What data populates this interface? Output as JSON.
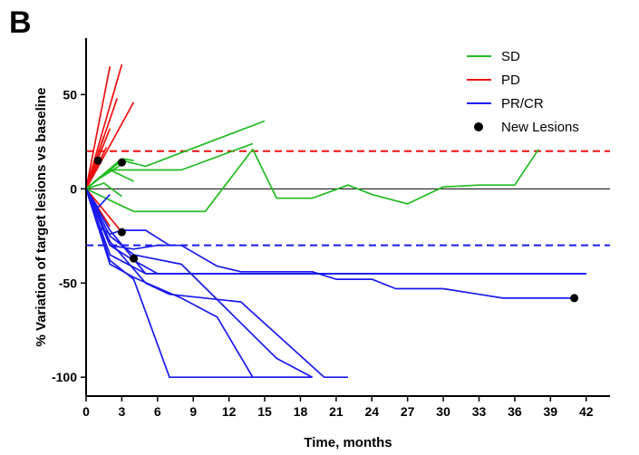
{
  "panel_label": "B",
  "chart_data": {
    "type": "line",
    "title": "",
    "xlabel": "Time, months",
    "ylabel": "% Variation of target lesions vs baseline",
    "xlim": [
      0,
      44
    ],
    "ylim": [
      -110,
      80
    ],
    "x_ticks": [
      0,
      3,
      6,
      9,
      12,
      15,
      18,
      21,
      24,
      27,
      30,
      33,
      36,
      39,
      42
    ],
    "y_ticks": [
      -100,
      -50,
      0,
      50
    ],
    "grid": false,
    "legend_position": "top-right",
    "colors": {
      "SD": "#22bb22",
      "PD": "#ee1111",
      "PR/CR": "#1a1aee",
      "New Lesions": "#000000",
      "zero_line": "#000000"
    },
    "legend": [
      {
        "label": "SD",
        "marker": "line",
        "color": "#22bb22"
      },
      {
        "label": "PD",
        "marker": "line",
        "color": "#ee1111"
      },
      {
        "label": "PR/CR",
        "marker": "line",
        "color": "#1a1aee"
      },
      {
        "label": "New Lesions",
        "marker": "dot",
        "color": "#000000"
      }
    ],
    "reference_lines": [
      {
        "y": 0,
        "color": "#000000",
        "style": "solid"
      },
      {
        "y": 20,
        "color": "#ee1111",
        "style": "dashed"
      },
      {
        "y": -30,
        "color": "#1a1aee",
        "style": "dashed"
      }
    ],
    "series": [
      {
        "group": "PD",
        "x": [
          0,
          2
        ],
        "y": [
          0,
          65
        ]
      },
      {
        "group": "PD",
        "x": [
          0,
          3
        ],
        "y": [
          0,
          66
        ]
      },
      {
        "group": "PD",
        "x": [
          0,
          2.6
        ],
        "y": [
          0,
          48
        ]
      },
      {
        "group": "PD",
        "x": [
          0,
          4
        ],
        "y": [
          0,
          46
        ]
      },
      {
        "group": "PD",
        "x": [
          0,
          2
        ],
        "y": [
          0,
          32
        ]
      },
      {
        "group": "PD",
        "x": [
          0,
          1.5
        ],
        "y": [
          0,
          28
        ]
      },
      {
        "group": "PD",
        "x": [
          0,
          1.7
        ],
        "y": [
          0,
          22
        ]
      },
      {
        "group": "PD",
        "x": [
          0,
          1
        ],
        "y": [
          0,
          15
        ]
      },
      {
        "group": "PD",
        "x": [
          0,
          3
        ],
        "y": [
          0,
          -23
        ]
      },
      {
        "group": "PD",
        "x": [
          0,
          2
        ],
        "y": [
          0,
          -20
        ]
      },
      {
        "group": "SD",
        "x": [
          0,
          2,
          8,
          14
        ],
        "y": [
          0,
          10,
          10,
          24
        ]
      },
      {
        "group": "SD",
        "x": [
          0,
          4,
          10,
          14,
          16,
          19,
          22,
          24,
          27,
          30,
          33,
          36,
          38
        ],
        "y": [
          0,
          -12,
          -12,
          21,
          -5,
          -5,
          2,
          -3,
          -8,
          1,
          2,
          2,
          21
        ]
      },
      {
        "group": "SD",
        "x": [
          0,
          2,
          3,
          5,
          15
        ],
        "y": [
          0,
          10,
          15,
          12,
          36
        ]
      },
      {
        "group": "SD",
        "x": [
          0,
          3,
          4
        ],
        "y": [
          0,
          16,
          15
        ]
      },
      {
        "group": "SD",
        "x": [
          0,
          2,
          4
        ],
        "y": [
          0,
          10,
          4
        ]
      },
      {
        "group": "SD",
        "x": [
          0,
          1,
          3
        ],
        "y": [
          0,
          5,
          13
        ]
      },
      {
        "group": "SD",
        "x": [
          0,
          1.5,
          3
        ],
        "y": [
          0,
          3,
          -4
        ]
      },
      {
        "group": "PR/CR",
        "x": [
          0,
          2,
          5,
          7,
          13,
          20,
          22
        ],
        "y": [
          0,
          -28,
          -50,
          -56,
          -60,
          -100,
          -100
        ]
      },
      {
        "group": "PR/CR",
        "x": [
          0,
          2,
          4,
          7,
          19
        ],
        "y": [
          0,
          -38,
          -48,
          -100,
          -100
        ]
      },
      {
        "group": "PR/CR",
        "x": [
          0,
          2,
          4,
          8,
          11,
          14,
          19
        ],
        "y": [
          0,
          -40,
          -47,
          -58,
          -68,
          -100,
          -100
        ]
      },
      {
        "group": "PR/CR",
        "x": [
          0,
          2,
          4,
          8,
          12,
          16,
          19
        ],
        "y": [
          0,
          -25,
          -35,
          -40,
          -65,
          -90,
          -100
        ]
      },
      {
        "group": "PR/CR",
        "x": [
          0,
          2,
          4,
          6,
          8,
          11,
          13,
          19,
          21,
          24,
          26,
          30,
          33,
          35,
          41
        ],
        "y": [
          0,
          -30,
          -32,
          -30,
          -30,
          -41,
          -44,
          -44,
          -48,
          -48,
          -53,
          -53,
          -56,
          -58,
          -58
        ]
      },
      {
        "group": "PR/CR",
        "x": [
          0,
          2,
          5,
          19,
          42
        ],
        "y": [
          0,
          -22,
          -45,
          -45,
          -45
        ]
      },
      {
        "group": "PR/CR",
        "x": [
          0,
          2,
          5,
          42
        ],
        "y": [
          0,
          -35,
          -45,
          -45
        ]
      },
      {
        "group": "PR/CR",
        "x": [
          0,
          2,
          4,
          6,
          42
        ],
        "y": [
          0,
          -30,
          -38,
          -45,
          -45
        ]
      },
      {
        "group": "PR/CR",
        "x": [
          0,
          1,
          2,
          3,
          5,
          7
        ],
        "y": [
          0,
          -20,
          -24,
          -22,
          -22,
          -30
        ]
      },
      {
        "group": "PR/CR",
        "x": [
          0,
          1,
          2
        ],
        "y": [
          0,
          -10,
          -3
        ]
      }
    ],
    "new_lesions": [
      {
        "x": 1,
        "y": 15
      },
      {
        "x": 3,
        "y": 14
      },
      {
        "x": 3,
        "y": -23
      },
      {
        "x": 4,
        "y": -37
      },
      {
        "x": 41,
        "y": -58
      }
    ]
  }
}
